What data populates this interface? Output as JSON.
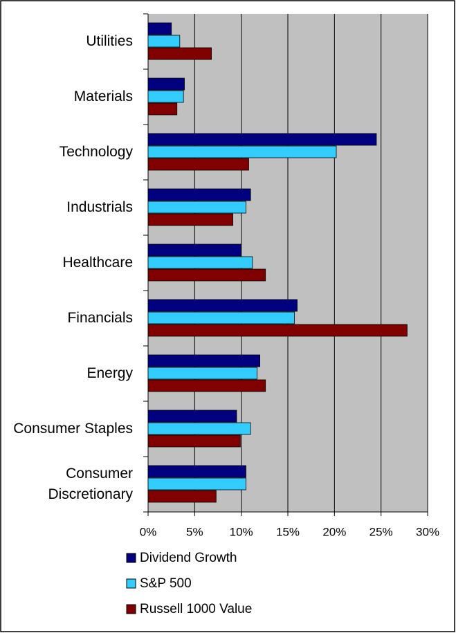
{
  "chart_data": {
    "type": "bar",
    "orientation": "horizontal",
    "categories": [
      "Utilities",
      "Materials",
      "Technology",
      "Industrials",
      "Healthcare",
      "Financials",
      "Energy",
      "Consumer Staples",
      "Consumer Discretionary"
    ],
    "series": [
      {
        "name": "Dividend Growth",
        "color": "#000080",
        "values": [
          2.5,
          3.9,
          24.5,
          11.0,
          10.0,
          16.0,
          12.0,
          9.5,
          10.5
        ]
      },
      {
        "name": "S&P 500",
        "color": "#33ccff",
        "values": [
          3.4,
          3.8,
          20.2,
          10.5,
          11.2,
          15.7,
          11.7,
          11.0,
          10.5
        ]
      },
      {
        "name": "Russell 1000 Value",
        "color": "#800000",
        "values": [
          6.8,
          3.1,
          10.8,
          9.1,
          12.6,
          27.8,
          12.6,
          9.9,
          7.3
        ]
      }
    ],
    "xlim": [
      0,
      30
    ],
    "xticks": [
      {
        "value": 0,
        "label": "0%"
      },
      {
        "value": 5,
        "label": "5%"
      },
      {
        "value": 10,
        "label": "10%"
      },
      {
        "value": 15,
        "label": "15%"
      },
      {
        "value": 20,
        "label": "20%"
      },
      {
        "value": 25,
        "label": "25%"
      },
      {
        "value": 30,
        "label": "30%"
      }
    ],
    "grid": true,
    "plot_background": "#c0c0c0",
    "legend": "bottom"
  }
}
